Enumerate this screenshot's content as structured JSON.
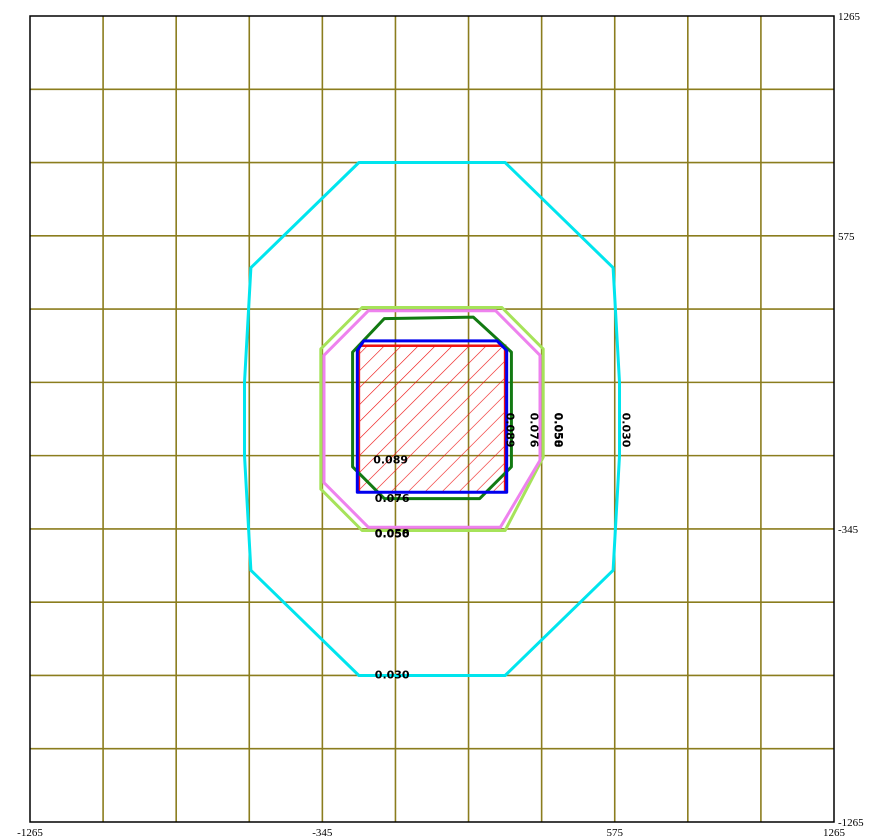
{
  "chart_data": {
    "type": "contour",
    "x_ticks": [
      "-1265",
      "-345",
      "575",
      "1265"
    ],
    "y_ticks": [
      "1265",
      "575",
      "-345",
      "-1265"
    ],
    "x_range": [
      -1265,
      1265
    ],
    "y_range": [
      -1265,
      1265
    ],
    "grid": true,
    "grid_step": 230,
    "colors": {
      "grid": "#8B7D1E",
      "frame": "#000000",
      "cyan": "#00E5EE",
      "lime": "#A6E35A",
      "pink": "#EE82EE",
      "dark_green": "#127A12",
      "blue": "#0000EE",
      "red": "#EE1111"
    },
    "loaded_area": {
      "x": [
        -230,
        230
      ],
      "y": [
        -230,
        230
      ],
      "hatch": true
    },
    "contours": [
      {
        "label": "0.030",
        "color": "cyan",
        "points": [
          [
            -230,
            805
          ],
          [
            230,
            805
          ],
          [
            570,
            475
          ],
          [
            590,
            115
          ],
          [
            590,
            -115
          ],
          [
            570,
            -475
          ],
          [
            230,
            -805
          ],
          [
            -230,
            -805
          ],
          [
            -570,
            -475
          ],
          [
            -590,
            -115
          ],
          [
            -590,
            115
          ],
          [
            -570,
            475
          ]
        ]
      },
      {
        "label": "0.050",
        "color": "lime",
        "points": [
          [
            -220,
            350
          ],
          [
            220,
            350
          ],
          [
            350,
            220
          ],
          [
            350,
            -120
          ],
          [
            230,
            -350
          ],
          [
            -220,
            -350
          ],
          [
            -350,
            -220
          ],
          [
            -350,
            220
          ]
        ]
      },
      {
        "label": "0.058",
        "color": "pink",
        "points": [
          [
            -200,
            340
          ],
          [
            200,
            340
          ],
          [
            340,
            200
          ],
          [
            340,
            -130
          ],
          [
            215,
            -340
          ],
          [
            -200,
            -340
          ],
          [
            -340,
            -200
          ],
          [
            -340,
            200
          ]
        ]
      },
      {
        "label": "0.076",
        "color": "dark_green",
        "points": [
          [
            -150,
            315
          ],
          [
            130,
            320
          ],
          [
            250,
            210
          ],
          [
            250,
            -150
          ],
          [
            150,
            -250
          ],
          [
            -150,
            -250
          ],
          [
            -250,
            -150
          ],
          [
            -250,
            210
          ]
        ]
      },
      {
        "label": "0.089",
        "color": "blue",
        "points": [
          [
            -215,
            245
          ],
          [
            205,
            245
          ],
          [
            235,
            215
          ],
          [
            235,
            -230
          ],
          [
            -235,
            -230
          ],
          [
            -235,
            215
          ]
        ]
      }
    ],
    "contour_labels": [
      {
        "text": "0.089",
        "x": -185,
        "y": -140,
        "rotate": 0
      },
      {
        "text": "0.076",
        "x": -180,
        "y": -260,
        "rotate": 0
      },
      {
        "text": "0.058",
        "x": -180,
        "y": -370,
        "rotate": 0
      },
      {
        "text": "0.050",
        "x": -180,
        "y": -372,
        "rotate": 0
      },
      {
        "text": "0.030",
        "x": -180,
        "y": -815,
        "rotate": 0
      },
      {
        "text": "0.089",
        "x": 235,
        "y": 20,
        "rotate": 90
      },
      {
        "text": "0.076",
        "x": 310,
        "y": 20,
        "rotate": 90
      },
      {
        "text": "0.058",
        "x": 385,
        "y": 20,
        "rotate": 90
      },
      {
        "text": "0.050",
        "x": 387,
        "y": 20,
        "rotate": 90
      },
      {
        "text": "0.030",
        "x": 600,
        "y": 20,
        "rotate": 90
      }
    ]
  }
}
